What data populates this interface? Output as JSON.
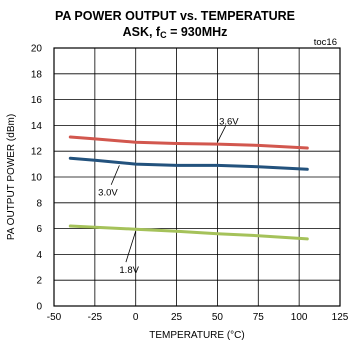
{
  "chart_data": {
    "type": "line",
    "title": "PA POWER OUTPUT vs. TEMPERATURE",
    "subtitle": {
      "prefix": "ASK, f",
      "sub": "C",
      "suffix": " = 930MHz"
    },
    "figure_id": "toc16",
    "xlabel": "TEMPERATURE (°C)",
    "ylabel": "PA OUTPUT POWER (dBm)",
    "xlim": [
      -50,
      125
    ],
    "ylim": [
      0,
      20
    ],
    "xticks": [
      -50,
      -25,
      0,
      25,
      50,
      75,
      100,
      125
    ],
    "yticks": [
      0,
      2,
      4,
      6,
      8,
      10,
      12,
      14,
      16,
      18,
      20
    ],
    "grid": true,
    "series": [
      {
        "name": "3.6V",
        "color": "#d2574e",
        "x": [
          -40,
          -25,
          0,
          25,
          50,
          75,
          105
        ],
        "y": [
          13.1,
          12.95,
          12.7,
          12.6,
          12.55,
          12.45,
          12.25
        ]
      },
      {
        "name": "3.0V",
        "color": "#23527d",
        "x": [
          -40,
          -25,
          0,
          25,
          50,
          75,
          105
        ],
        "y": [
          11.45,
          11.3,
          11.0,
          10.9,
          10.9,
          10.8,
          10.6
        ]
      },
      {
        "name": "1.8V",
        "color": "#a5c25a",
        "x": [
          -40,
          -25,
          0,
          25,
          50,
          75,
          105
        ],
        "y": [
          6.2,
          6.1,
          5.95,
          5.8,
          5.6,
          5.45,
          5.2
        ]
      }
    ],
    "annotations": [
      {
        "text": "3.6V",
        "series": "3.6V"
      },
      {
        "text": "3.0V",
        "series": "3.0V"
      },
      {
        "text": "1.8V",
        "series": "1.8V"
      }
    ]
  }
}
